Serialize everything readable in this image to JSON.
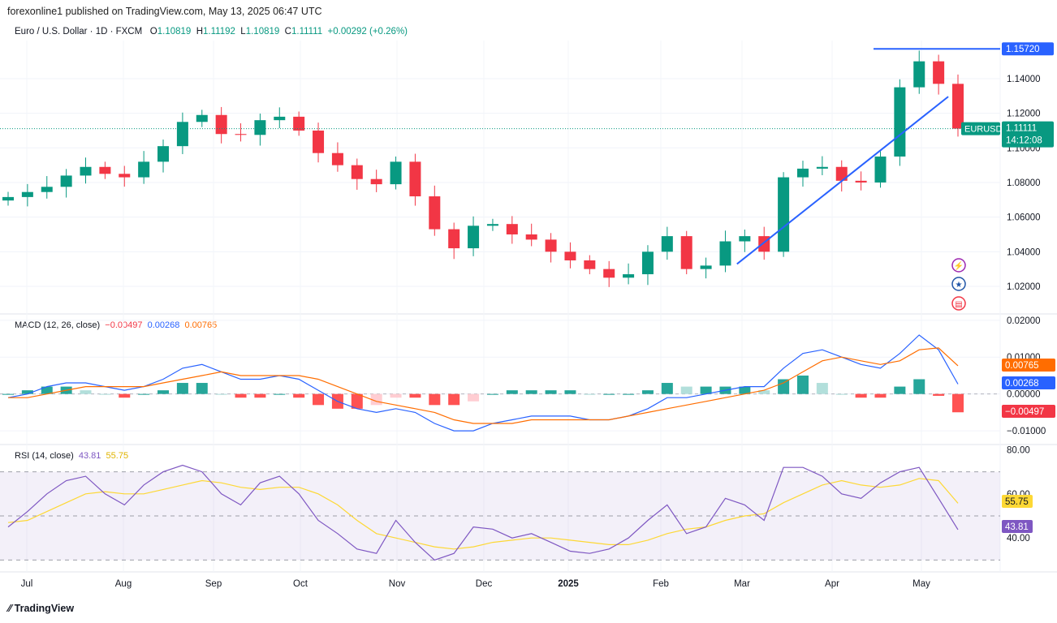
{
  "header": {
    "published": "forexonline1 published on TradingView.com, May 13, 2025 06:47 UTC"
  },
  "legend": {
    "symbol": "Euro / U.S. Dollar · 1D · FXCM",
    "o_label": "O",
    "o": "1.10819",
    "h_label": "H",
    "h": "1.11192",
    "l_label": "L",
    "l": "1.10819",
    "c_label": "C",
    "c": "1.11111",
    "change": "+0.00292 (+0.26%)"
  },
  "macd_legend": {
    "title": "MACD (12, 26, close)",
    "hist": "−0.00497",
    "macd": "0.00268",
    "signal": "0.00765"
  },
  "rsi_legend": {
    "title": "RSI (14, close)",
    "rsi": "43.81",
    "ma": "55.75"
  },
  "footer": {
    "brand": "TradingView"
  },
  "colors": {
    "up": "#089981",
    "down": "#f23645",
    "macd": "#2962ff",
    "signal": "#ff6d00",
    "rsi": "#7e57c2",
    "rsi_ma": "#fdd835",
    "drawing": "#2962ff"
  },
  "chart_data": [
    {
      "type": "candlestick",
      "name": "EURUSD",
      "interval": "weekly approximation of 1D",
      "ylim": [
        1.005,
        1.162
      ],
      "y_ticks": [
        "1.02000",
        "1.04000",
        "1.06000",
        "1.08000",
        "1.10000",
        "1.12000",
        "1.14000"
      ],
      "x_ticks": [
        "Jul",
        "Aug",
        "Sep",
        "Oct",
        "Nov",
        "Dec",
        "2025",
        "Feb",
        "Mar",
        "Apr",
        "May"
      ],
      "closes": [
        1.0716,
        1.0745,
        1.0775,
        1.084,
        1.089,
        1.085,
        1.083,
        1.092,
        1.101,
        1.115,
        1.119,
        1.108,
        1.1075,
        1.116,
        1.118,
        1.11,
        1.097,
        1.09,
        1.082,
        1.079,
        1.092,
        1.072,
        1.053,
        1.042,
        1.055,
        1.056,
        1.05,
        1.047,
        1.04,
        1.035,
        1.03,
        1.025,
        1.027,
        1.04,
        1.049,
        1.03,
        1.032,
        1.046,
        1.049,
        1.04,
        1.083,
        1.088,
        1.089,
        1.081,
        1.08,
        1.095,
        1.135,
        1.15,
        1.137,
        1.1111
      ],
      "horizontal_line": {
        "price": 1.1572,
        "label": "1.15720"
      },
      "trend_line": {
        "from": [
          37.6,
          1.0329
        ],
        "to": [
          48.5,
          1.1296
        ]
      },
      "last": {
        "symbol": "EURUSD",
        "price": "1.11111",
        "countdown": "14:12:08"
      }
    },
    {
      "type": "line",
      "name": "MACD",
      "ylim": [
        -0.0135,
        0.0215
      ],
      "y_ticks": [
        "0.02000",
        "0.01000",
        "0.00000",
        "−0.01000"
      ],
      "macd": [
        -0.001,
        0.0,
        0.002,
        0.003,
        0.003,
        0.002,
        0.001,
        0.002,
        0.004,
        0.007,
        0.008,
        0.006,
        0.004,
        0.004,
        0.005,
        0.004,
        0.001,
        -0.002,
        -0.004,
        -0.005,
        -0.004,
        -0.005,
        -0.008,
        -0.01,
        -0.01,
        -0.008,
        -0.007,
        -0.006,
        -0.006,
        -0.006,
        -0.007,
        -0.007,
        -0.006,
        -0.004,
        -0.001,
        -0.001,
        0.0,
        0.001,
        0.002,
        0.002,
        0.007,
        0.011,
        0.012,
        0.01,
        0.008,
        0.007,
        0.011,
        0.016,
        0.012,
        0.00268
      ],
      "signal": [
        -0.001,
        -0.001,
        0.0,
        0.001,
        0.002,
        0.002,
        0.002,
        0.002,
        0.003,
        0.004,
        0.005,
        0.006,
        0.005,
        0.005,
        0.005,
        0.005,
        0.004,
        0.002,
        0.0,
        -0.002,
        -0.003,
        -0.004,
        -0.005,
        -0.007,
        -0.008,
        -0.008,
        -0.008,
        -0.007,
        -0.007,
        -0.007,
        -0.007,
        -0.007,
        -0.006,
        -0.005,
        -0.004,
        -0.003,
        -0.002,
        -0.001,
        0.0,
        0.001,
        0.003,
        0.006,
        0.009,
        0.01,
        0.009,
        0.008,
        0.009,
        0.012,
        0.0125,
        0.00765
      ],
      "labels": {
        "signal": "0.00765",
        "macd": "0.00268",
        "hist": "−0.00497"
      }
    },
    {
      "type": "line",
      "name": "RSI",
      "ylim": [
        25,
        82
      ],
      "y_ticks": [
        "80.00",
        "60.00",
        "40.00"
      ],
      "bands": [
        30,
        50,
        70
      ],
      "rsi": [
        45,
        52,
        60,
        66,
        68,
        60,
        55,
        64,
        70,
        73,
        70,
        60,
        55,
        65,
        68,
        60,
        48,
        42,
        35,
        33,
        48,
        38,
        30,
        33,
        45,
        44,
        40,
        42,
        38,
        34,
        33,
        35,
        40,
        48,
        55,
        42,
        45,
        58,
        55,
        48,
        72,
        72,
        68,
        60,
        58,
        65,
        70,
        72,
        58,
        43.81
      ],
      "rsi_ma": [
        47,
        48,
        52,
        56,
        60,
        61,
        60,
        60,
        62,
        64,
        66,
        65,
        63,
        62,
        63,
        63,
        60,
        55,
        48,
        42,
        40,
        38,
        36,
        35,
        36,
        38,
        39,
        40,
        40,
        39,
        38,
        37,
        37,
        39,
        42,
        44,
        45,
        48,
        50,
        51,
        56,
        60,
        64,
        66,
        64,
        63,
        64,
        67,
        66,
        55.75
      ],
      "labels": {
        "ma": "55.75",
        "rsi": "43.81"
      }
    }
  ]
}
